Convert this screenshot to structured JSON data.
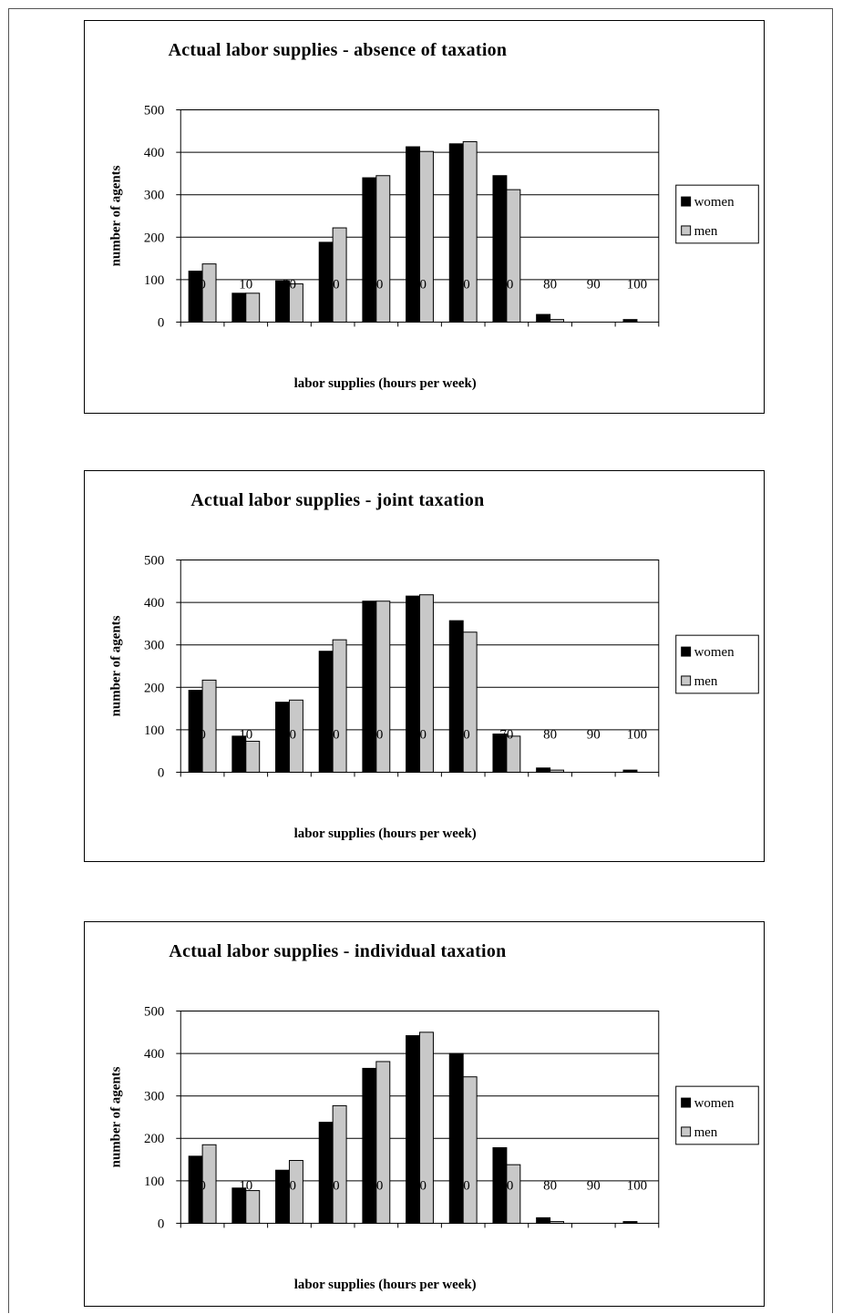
{
  "colors": {
    "women": "#000000",
    "men": "#c8c8c8",
    "grid": "#000000",
    "frame": "#000000"
  },
  "legend_position": "right",
  "chart_data": [
    {
      "type": "bar",
      "title": "Actual labor supplies - absence of taxation",
      "xlabel": "labor supplies (hours per week)",
      "ylabel": "number of agents",
      "ylim": [
        0,
        500
      ],
      "yticks": [
        0,
        100,
        200,
        300,
        400,
        500
      ],
      "grid": true,
      "categories": [
        "0",
        "10",
        "20",
        "30",
        "40",
        "50",
        "60",
        "70",
        "80",
        "90",
        "100"
      ],
      "series": [
        {
          "name": "women",
          "values": [
            120,
            68,
            97,
            188,
            340,
            413,
            420,
            345,
            18,
            0,
            6
          ]
        },
        {
          "name": "men",
          "values": [
            137,
            68,
            90,
            222,
            345,
            402,
            425,
            312,
            6,
            0,
            0
          ]
        }
      ]
    },
    {
      "type": "bar",
      "title": "Actual labor supplies - joint taxation",
      "xlabel": "labor supplies (hours per week)",
      "ylabel": "number of agents",
      "ylim": [
        0,
        500
      ],
      "yticks": [
        0,
        100,
        200,
        300,
        400,
        500
      ],
      "grid": true,
      "categories": [
        "0",
        "10",
        "20",
        "30",
        "40",
        "50",
        "60",
        "70",
        "80",
        "90",
        "100"
      ],
      "series": [
        {
          "name": "women",
          "values": [
            193,
            85,
            165,
            285,
            403,
            415,
            357,
            90,
            10,
            0,
            5
          ]
        },
        {
          "name": "men",
          "values": [
            217,
            73,
            170,
            312,
            403,
            418,
            330,
            85,
            5,
            0,
            0
          ]
        }
      ]
    },
    {
      "type": "bar",
      "title": "Actual labor supplies - individual taxation",
      "xlabel": "labor supplies (hours per week)",
      "ylabel": "number of agents",
      "ylim": [
        0,
        500
      ],
      "yticks": [
        0,
        100,
        200,
        300,
        400,
        500
      ],
      "grid": true,
      "categories": [
        "0",
        "10",
        "20",
        "30",
        "40",
        "50",
        "60",
        "70",
        "80",
        "90",
        "100"
      ],
      "series": [
        {
          "name": "women",
          "values": [
            158,
            83,
            125,
            238,
            365,
            442,
            400,
            178,
            13,
            0,
            4
          ]
        },
        {
          "name": "men",
          "values": [
            185,
            77,
            148,
            277,
            381,
            450,
            345,
            138,
            4,
            0,
            0
          ]
        }
      ]
    }
  ]
}
